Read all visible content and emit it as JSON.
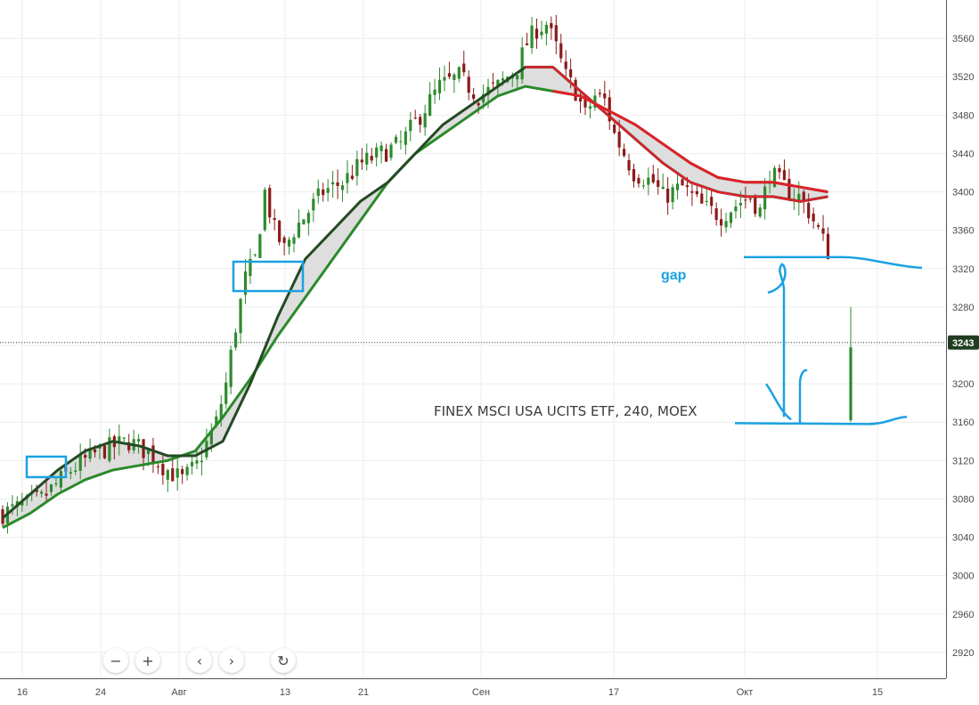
{
  "watermark": "FINEX MSCI USA UCITS ETF, 240, MOEX",
  "annotation": {
    "gap_label": "gap"
  },
  "price_badge": "3243",
  "toolbar": [
    {
      "name": "zoom-out-button",
      "icon": "minus-icon",
      "glyph": "−"
    },
    {
      "name": "zoom-in-button",
      "icon": "plus-icon",
      "glyph": "+"
    },
    {
      "name": "scroll-left-button",
      "icon": "chevron-left-icon",
      "glyph": "‹"
    },
    {
      "name": "scroll-right-button",
      "icon": "chevron-right-icon",
      "glyph": "›"
    },
    {
      "name": "reset-button",
      "icon": "reset-icon",
      "glyph": "↻"
    }
  ],
  "colors": {
    "bull": "#2e8b2e",
    "bear": "#8b1a1a",
    "ma_fast": "#244a24",
    "ma_slow_up": "#2a8a2a",
    "ma_down": "#e0202a",
    "annotation": "#1ba1e2",
    "badge": "#1f3d1f"
  },
  "chart_data": {
    "type": "candlestick",
    "title": "FINEX MSCI USA UCITS ETF, 240, MOEX",
    "x_tick_labels": [
      "16",
      "24",
      "Авг",
      "13",
      "21",
      "Сен",
      "17",
      "Окт",
      "15"
    ],
    "y_ticks": [
      2920,
      2960,
      3000,
      3040,
      3080,
      3120,
      3160,
      3200,
      3240,
      3280,
      3320,
      3360,
      3400,
      3440,
      3480,
      3520,
      3560
    ],
    "y_tick_labels": [
      "2920",
      "2960",
      "3000",
      "3040",
      "3080",
      "3120",
      "3160",
      "3200",
      "3280",
      "3320",
      "3360",
      "3400",
      "3440",
      "3480",
      "3520",
      "3560"
    ],
    "ylim": [
      2893,
      3600
    ],
    "last_price": 3243,
    "gap": {
      "label": "gap",
      "upper": 3332,
      "lower": 3158
    },
    "close_path": [
      [
        0,
        3065
      ],
      [
        8,
        3080
      ],
      [
        14,
        3110
      ],
      [
        20,
        3130
      ],
      [
        26,
        3140
      ],
      [
        30,
        3128
      ],
      [
        34,
        3110
      ],
      [
        37,
        3100
      ],
      [
        40,
        3115
      ],
      [
        44,
        3160
      ],
      [
        46,
        3200
      ],
      [
        48,
        3260
      ],
      [
        50,
        3310
      ],
      [
        52,
        3330
      ],
      [
        54,
        3400
      ],
      [
        56,
        3360
      ],
      [
        58,
        3340
      ],
      [
        60,
        3360
      ],
      [
        63,
        3380
      ],
      [
        66,
        3400
      ],
      [
        70,
        3410
      ],
      [
        74,
        3430
      ],
      [
        78,
        3440
      ],
      [
        82,
        3450
      ],
      [
        86,
        3480
      ],
      [
        90,
        3510
      ],
      [
        94,
        3520
      ],
      [
        98,
        3500
      ],
      [
        102,
        3510
      ],
      [
        106,
        3530
      ],
      [
        108,
        3555
      ],
      [
        110,
        3570
      ],
      [
        112,
        3575
      ],
      [
        114,
        3550
      ],
      [
        116,
        3520
      ],
      [
        118,
        3505
      ],
      [
        120,
        3480
      ],
      [
        122,
        3500
      ],
      [
        124,
        3495
      ],
      [
        126,
        3460
      ],
      [
        128,
        3440
      ],
      [
        130,
        3420
      ],
      [
        134,
        3410
      ],
      [
        136,
        3395
      ],
      [
        140,
        3405
      ],
      [
        144,
        3385
      ],
      [
        148,
        3375
      ],
      [
        152,
        3390
      ],
      [
        154,
        3395
      ],
      [
        156,
        3380
      ],
      [
        158,
        3420
      ],
      [
        160,
        3410
      ],
      [
        162,
        3400
      ],
      [
        164,
        3395
      ],
      [
        166,
        3380
      ],
      [
        168,
        3360
      ],
      [
        170,
        3338
      ]
    ],
    "gap_candle": {
      "open": 3162,
      "close": 3238,
      "high": 3280,
      "low": 3160
    },
    "series": [
      {
        "name": "MA fast",
        "values": [
          3060,
          3085,
          3110,
          3130,
          3140,
          3135,
          3125,
          3125,
          3140,
          3200,
          3270,
          3330,
          3360,
          3390,
          3410,
          3440,
          3470,
          3490,
          3510,
          3530,
          3530,
          3505,
          3480,
          3455,
          3430,
          3410,
          3400,
          3395,
          3395,
          3390,
          3395
        ]
      },
      {
        "name": "MA slow",
        "values": [
          3050,
          3065,
          3085,
          3100,
          3110,
          3115,
          3120,
          3130,
          3165,
          3205,
          3250,
          3290,
          3330,
          3370,
          3410,
          3440,
          3460,
          3480,
          3500,
          3510,
          3505,
          3500,
          3485,
          3470,
          3450,
          3430,
          3415,
          3410,
          3410,
          3405,
          3400
        ]
      }
    ]
  }
}
